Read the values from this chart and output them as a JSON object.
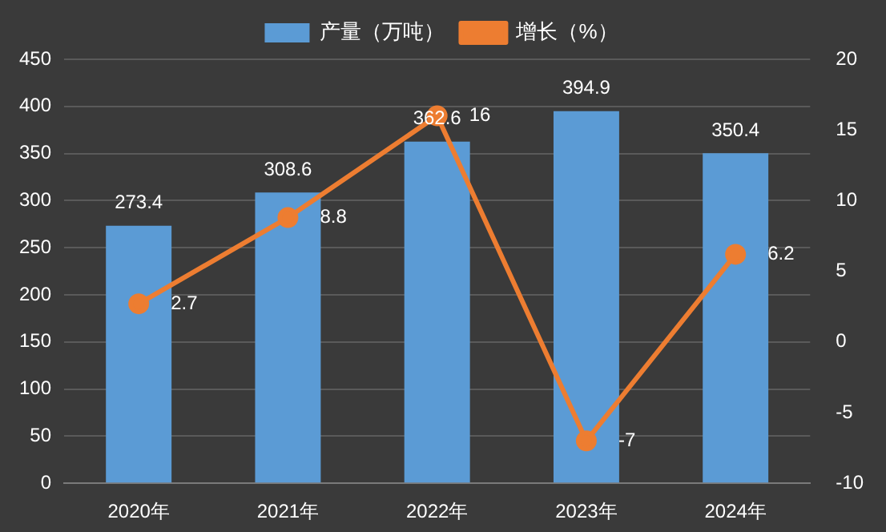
{
  "chart_data": {
    "type": "bar",
    "categories": [
      "2020年",
      "2021年",
      "2022年",
      "2023年",
      "2024年"
    ],
    "series": [
      {
        "name": "产量（万吨）",
        "color": "#5b9bd5",
        "values": [
          273.4,
          308.6,
          362.6,
          394.9,
          350.4
        ]
      },
      {
        "name": "增长（%）",
        "type": "line",
        "axis": "y2",
        "color": "#ed7d31",
        "values": [
          2.7,
          8.8,
          16,
          -7,
          6.2
        ]
      }
    ],
    "ylim": [
      0,
      450
    ],
    "yticks": [
      0,
      50,
      100,
      150,
      200,
      250,
      300,
      350,
      400,
      450
    ],
    "y2lim": [
      -10,
      20
    ],
    "y2ticks": [
      -10,
      -5,
      0,
      5,
      10,
      15,
      20
    ],
    "grid": "y",
    "legend": "top",
    "marker": "circle",
    "line_style": "solid",
    "data_labels": true
  }
}
